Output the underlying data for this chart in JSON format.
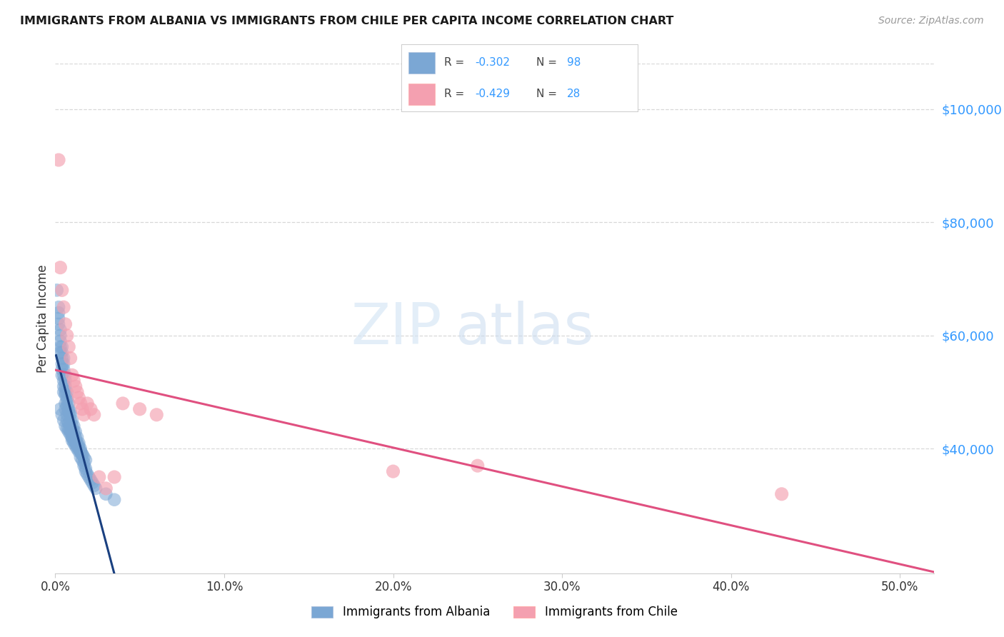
{
  "title": "IMMIGRANTS FROM ALBANIA VS IMMIGRANTS FROM CHILE PER CAPITA INCOME CORRELATION CHART",
  "source": "Source: ZipAtlas.com",
  "ylabel": "Per Capita Income",
  "R_albania": -0.302,
  "N_albania": 98,
  "R_chile": -0.429,
  "N_chile": 28,
  "ylim": [
    18000,
    108000
  ],
  "xlim": [
    0.0,
    0.52
  ],
  "yticks_right": [
    40000,
    60000,
    80000,
    100000
  ],
  "ytick_labels_right": [
    "$40,000",
    "$60,000",
    "$80,000",
    "$100,000"
  ],
  "xticks": [
    0.0,
    0.1,
    0.2,
    0.3,
    0.4,
    0.5
  ],
  "xtick_labels": [
    "0.0%",
    "10.0%",
    "20.0%",
    "30.0%",
    "40.0%",
    "50.0%"
  ],
  "color_albania": "#7ba7d4",
  "color_chile": "#f4a0b0",
  "color_albania_line": "#1a4080",
  "color_chile_line": "#e05080",
  "color_dashed": "#b0c8e8",
  "color_grid": "#d8d8d8",
  "color_ytick": "#3399ff",
  "background_color": "#ffffff",
  "albania_x": [
    0.001,
    0.002,
    0.002,
    0.002,
    0.002,
    0.003,
    0.003,
    0.003,
    0.003,
    0.003,
    0.004,
    0.004,
    0.004,
    0.004,
    0.004,
    0.004,
    0.005,
    0.005,
    0.005,
    0.005,
    0.005,
    0.005,
    0.005,
    0.006,
    0.006,
    0.006,
    0.006,
    0.006,
    0.006,
    0.006,
    0.007,
    0.007,
    0.007,
    0.007,
    0.007,
    0.007,
    0.008,
    0.008,
    0.008,
    0.008,
    0.008,
    0.009,
    0.009,
    0.009,
    0.009,
    0.009,
    0.01,
    0.01,
    0.01,
    0.01,
    0.01,
    0.011,
    0.011,
    0.011,
    0.011,
    0.012,
    0.012,
    0.012,
    0.012,
    0.013,
    0.013,
    0.013,
    0.014,
    0.014,
    0.014,
    0.015,
    0.015,
    0.015,
    0.016,
    0.016,
    0.017,
    0.017,
    0.018,
    0.018,
    0.019,
    0.02,
    0.021,
    0.022,
    0.023,
    0.024,
    0.003,
    0.004,
    0.005,
    0.006,
    0.007,
    0.008,
    0.009,
    0.01,
    0.011,
    0.012,
    0.013,
    0.014,
    0.015,
    0.016,
    0.017,
    0.018,
    0.03,
    0.035
  ],
  "albania_y": [
    68000,
    64000,
    62000,
    63000,
    65000,
    60000,
    58000,
    61000,
    59000,
    57000,
    56000,
    55000,
    57000,
    54000,
    53000,
    58000,
    52000,
    54000,
    56000,
    51000,
    50000,
    53000,
    55000,
    49500,
    51000,
    53000,
    48000,
    50000,
    52000,
    47000,
    48500,
    50000,
    46000,
    47500,
    49000,
    45000,
    48000,
    46500,
    44500,
    47000,
    43500,
    46000,
    45000,
    44000,
    43000,
    46500,
    45000,
    44000,
    43000,
    42000,
    41500,
    44000,
    43000,
    42500,
    41000,
    43000,
    42000,
    41500,
    40500,
    42000,
    41000,
    40000,
    41000,
    40500,
    39500,
    40000,
    39500,
    38500,
    39000,
    38000,
    37500,
    37000,
    36500,
    36000,
    35500,
    35000,
    34500,
    34000,
    33500,
    33000,
    47000,
    46000,
    45000,
    44000,
    43500,
    43000,
    42500,
    42000,
    41500,
    41000,
    40500,
    40000,
    39500,
    39000,
    38500,
    38000,
    32000,
    31000
  ],
  "chile_x": [
    0.002,
    0.003,
    0.004,
    0.005,
    0.006,
    0.007,
    0.008,
    0.009,
    0.01,
    0.011,
    0.012,
    0.013,
    0.014,
    0.015,
    0.016,
    0.017,
    0.019,
    0.021,
    0.023,
    0.026,
    0.03,
    0.035,
    0.04,
    0.05,
    0.06,
    0.43,
    0.25,
    0.2
  ],
  "chile_y": [
    91000,
    72000,
    68000,
    65000,
    62000,
    60000,
    58000,
    56000,
    53000,
    52000,
    51000,
    50000,
    49000,
    48000,
    47000,
    46000,
    48000,
    47000,
    46000,
    35000,
    33000,
    35000,
    48000,
    47000,
    46000,
    32000,
    37000,
    36000
  ]
}
